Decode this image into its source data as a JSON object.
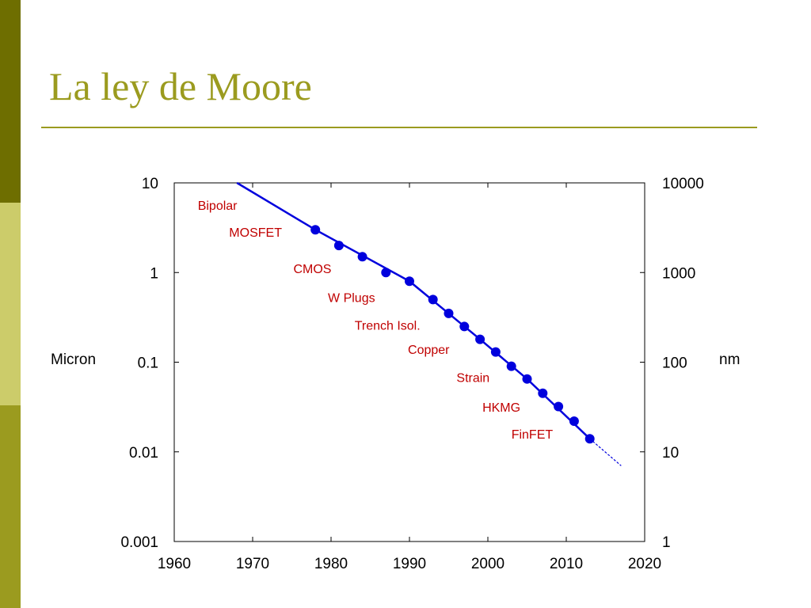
{
  "slide": {
    "title": "La ley de Moore",
    "colors": {
      "title": "#9b9b1f",
      "rule": "#9b9b1f",
      "sidebar": [
        "#6e6e00",
        "#cccc6a",
        "#9b9b1f"
      ]
    }
  },
  "chart_data": {
    "type": "line",
    "title": "",
    "xlabel": "",
    "ylabel": "Micron",
    "ylabel_right": "nm",
    "xlim": [
      1960,
      2020
    ],
    "ylim": [
      0.001,
      10
    ],
    "yscale": "log",
    "grid": false,
    "x_ticks": [
      "1960",
      "1970",
      "1980",
      "1990",
      "2000",
      "2010",
      "2020"
    ],
    "y_ticks_left": [
      "10",
      "1",
      "0.1",
      "0.01",
      "0.001"
    ],
    "y_ticks_right": [
      "10000",
      "1000",
      "100",
      "10",
      "1"
    ],
    "series": [
      {
        "color": "#0000dd",
        "x": [
          1978,
          1981,
          1984,
          1987,
          1990,
          1993,
          1995,
          1997,
          1999,
          2001,
          2003,
          2005,
          2007,
          2009,
          2011,
          2013
        ],
        "y": [
          3.0,
          2.0,
          1.5,
          1.0,
          0.8,
          0.5,
          0.35,
          0.25,
          0.18,
          0.13,
          0.09,
          0.065,
          0.045,
          0.032,
          0.022,
          0.014
        ]
      }
    ],
    "trend_line": {
      "solid": [
        [
          1968,
          10
        ],
        [
          1978,
          3.0
        ],
        [
          1990,
          0.8
        ],
        [
          1999,
          0.18
        ],
        [
          2005,
          0.065
        ],
        [
          2013,
          0.014
        ]
      ],
      "dashed": [
        [
          2013,
          0.014
        ],
        [
          2017,
          0.007
        ]
      ]
    },
    "annotations": [
      {
        "text": "Bipolar",
        "x": 1963,
        "y": 5.0
      },
      {
        "text": "MOSFET",
        "x": 1967,
        "y": 2.5
      },
      {
        "text": "CMOS",
        "x": 1975.2,
        "y": 0.98
      },
      {
        "text": "W Plugs",
        "x": 1979.6,
        "y": 0.47
      },
      {
        "text": "Trench Isol.",
        "x": 1983,
        "y": 0.23
      },
      {
        "text": "Copper",
        "x": 1989.8,
        "y": 0.124
      },
      {
        "text": "Strain",
        "x": 1996,
        "y": 0.06
      },
      {
        "text": "HKMG",
        "x": 1999.3,
        "y": 0.028
      },
      {
        "text": "FinFET",
        "x": 2003,
        "y": 0.014
      }
    ],
    "annotation_color": "#c00000"
  }
}
